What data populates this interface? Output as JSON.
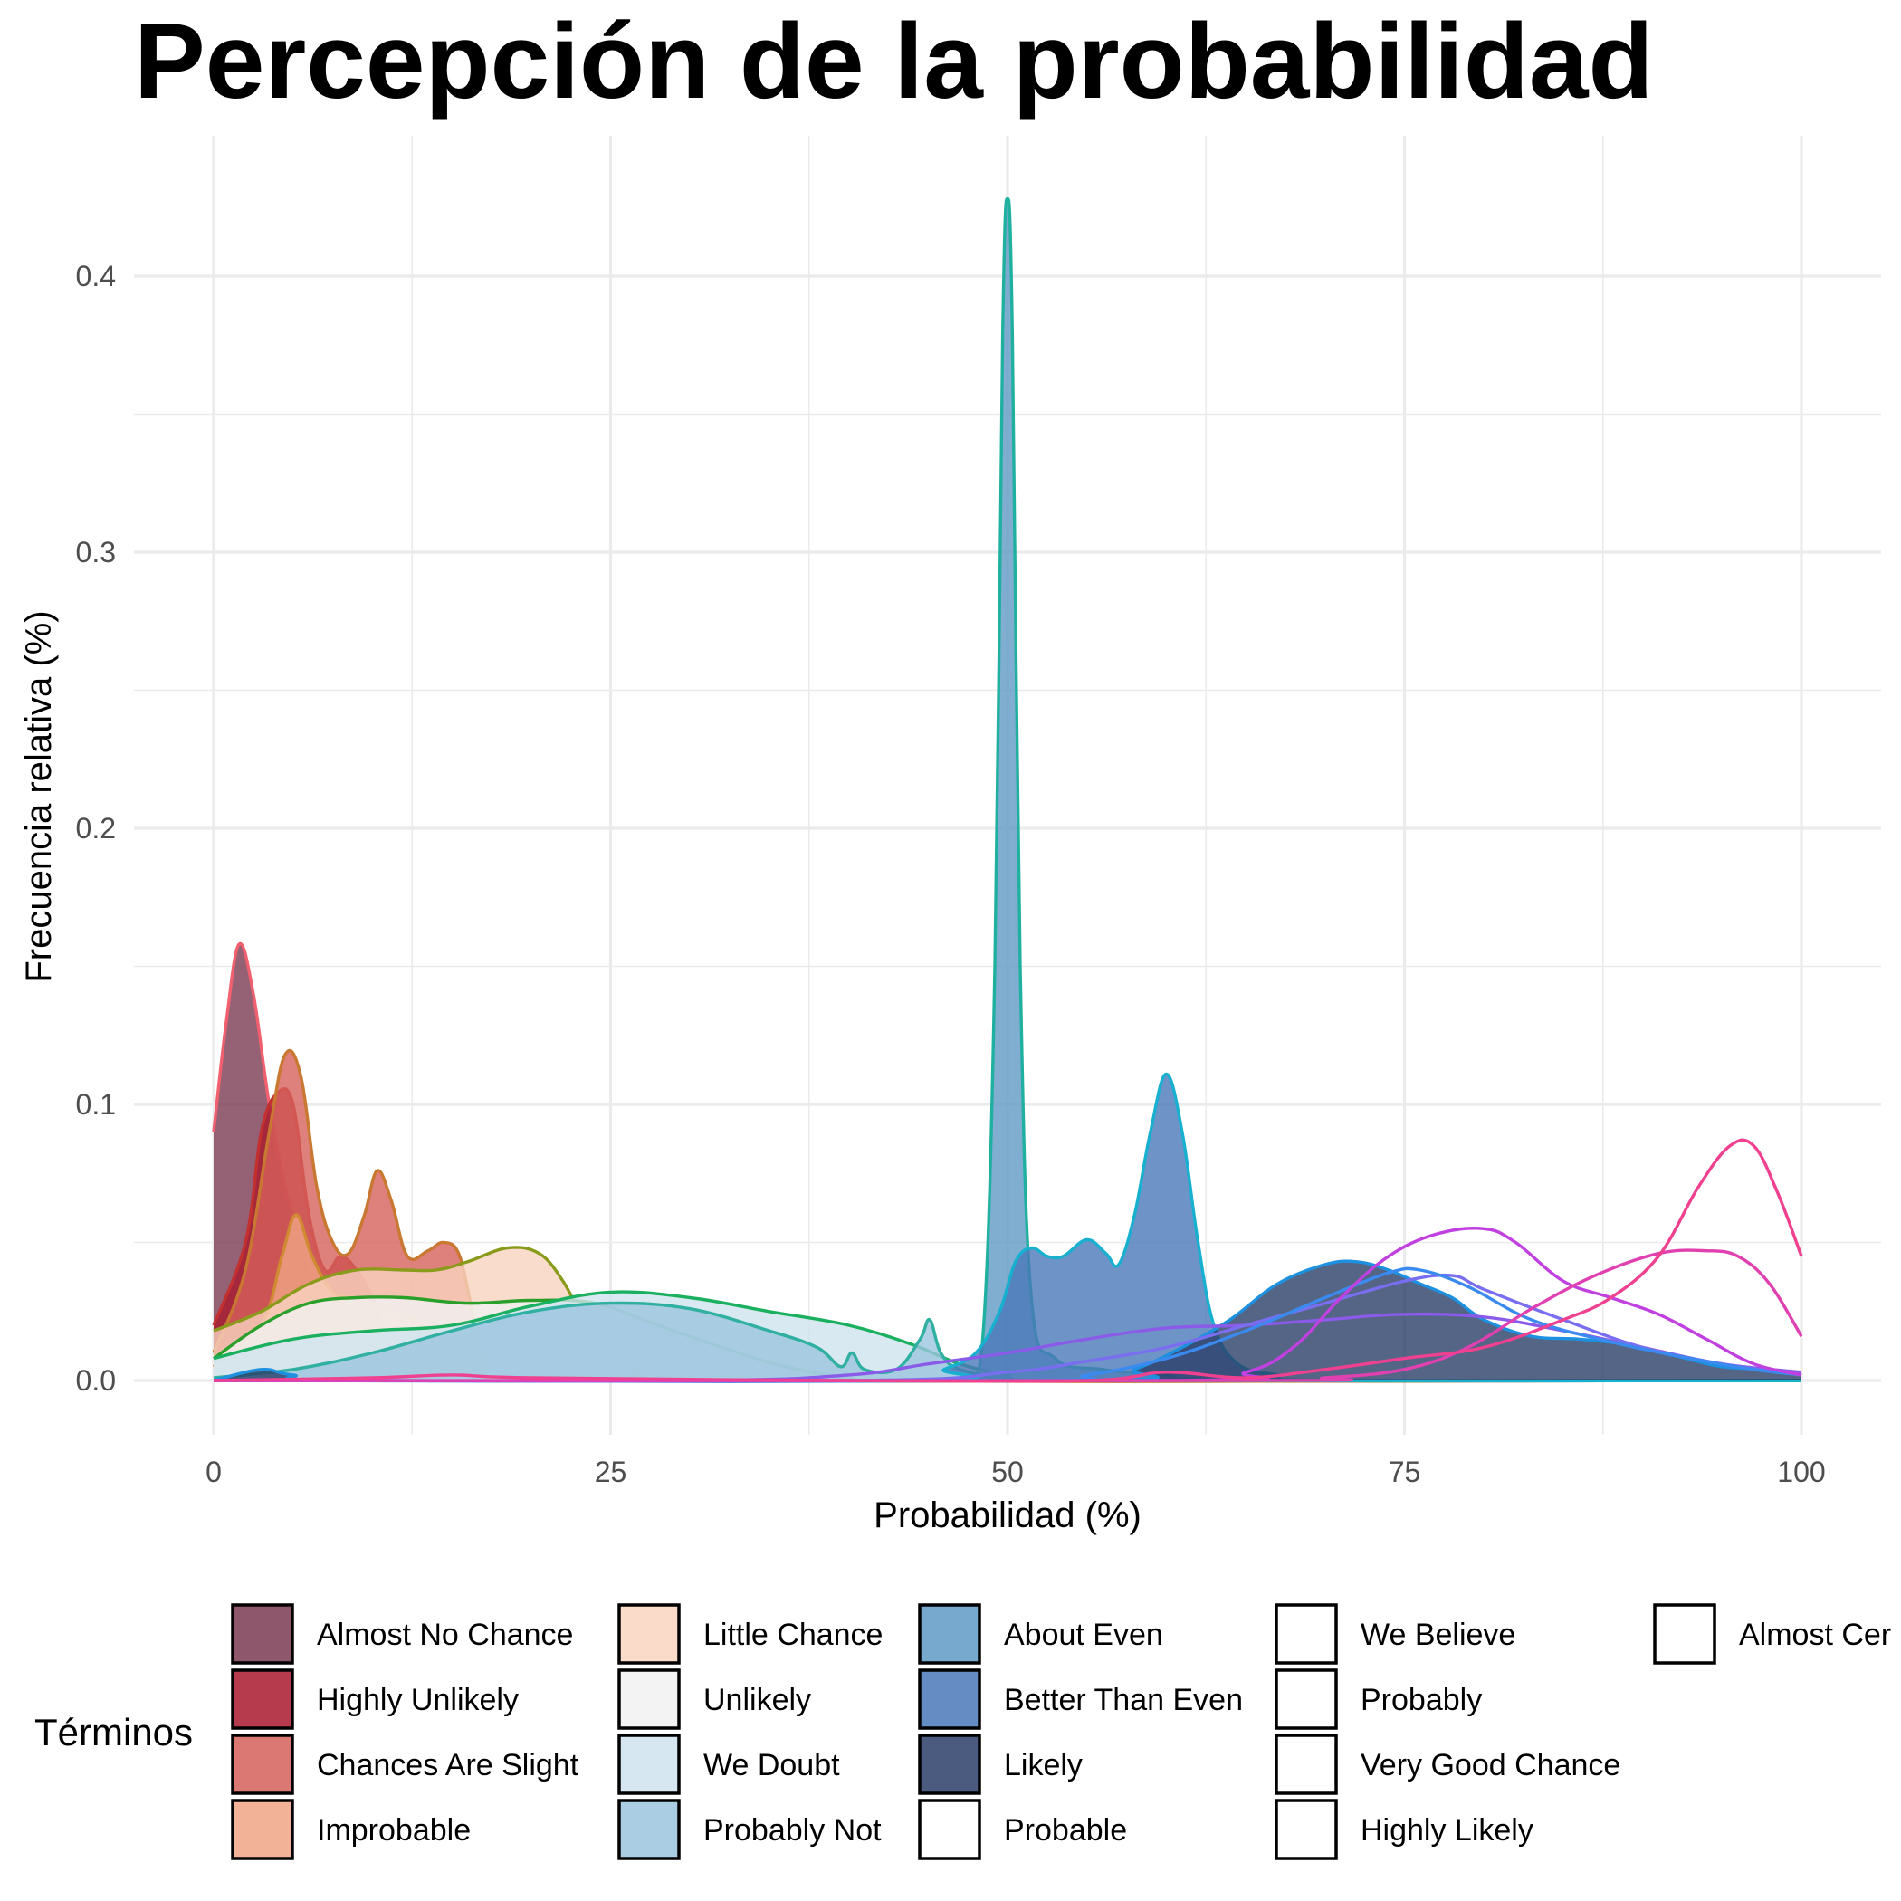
{
  "chart_data": {
    "type": "area",
    "title": "Percepción de la probabilidad",
    "xlabel": "Probabilidad (%)",
    "ylabel": "Frecuencia relativa (%)",
    "xlim": [
      0,
      100
    ],
    "ylim": [
      0,
      0.43
    ],
    "x_ticks": [
      "0",
      "25",
      "50",
      "75",
      "100"
    ],
    "y_ticks": [
      "0.0",
      "0.1",
      "0.2",
      "0.3",
      "0.4"
    ],
    "grid": true,
    "legend_position": "bottom",
    "legend_title": "Términos",
    "series": [
      {
        "name": "Almost No Chance",
        "fill": "#7a3a52",
        "stroke": "#f0606e",
        "filled": true,
        "points": [
          [
            0,
            0.09
          ],
          [
            0.8,
            0.13
          ],
          [
            1.6,
            0.158
          ],
          [
            2.5,
            0.14
          ],
          [
            3.5,
            0.1
          ],
          [
            4.5,
            0.07
          ],
          [
            5.5,
            0.05
          ],
          [
            6.5,
            0.03
          ],
          [
            7.5,
            0.015
          ],
          [
            9,
            0.004
          ],
          [
            12,
            0
          ],
          [
            100,
            0
          ]
        ]
      },
      {
        "name": "Highly Unlikely",
        "fill": "#a8192e",
        "stroke": "#c33030",
        "filled": true,
        "points": [
          [
            0,
            0.02
          ],
          [
            2,
            0.05
          ],
          [
            3,
            0.09
          ],
          [
            4,
            0.104
          ],
          [
            5,
            0.1
          ],
          [
            6,
            0.06
          ],
          [
            7,
            0.04
          ],
          [
            8,
            0.045
          ],
          [
            9,
            0.04
          ],
          [
            10,
            0.03
          ],
          [
            11,
            0.015
          ],
          [
            12,
            0.005
          ],
          [
            14,
            0
          ],
          [
            100,
            0
          ]
        ]
      },
      {
        "name": "Chances Are Slight",
        "fill": "#d6605a",
        "stroke": "#c87830",
        "filled": true,
        "points": [
          [
            0,
            0.01
          ],
          [
            2,
            0.04
          ],
          [
            3.5,
            0.09
          ],
          [
            4.5,
            0.118
          ],
          [
            5.5,
            0.11
          ],
          [
            6.5,
            0.07
          ],
          [
            7.5,
            0.05
          ],
          [
            8.5,
            0.046
          ],
          [
            9.5,
            0.06
          ],
          [
            10.3,
            0.076
          ],
          [
            11.2,
            0.065
          ],
          [
            12.2,
            0.045
          ],
          [
            13.5,
            0.047
          ],
          [
            14.5,
            0.05
          ],
          [
            15.5,
            0.045
          ],
          [
            16.5,
            0.02
          ],
          [
            17.5,
            0.005
          ],
          [
            19,
            0
          ],
          [
            100,
            0
          ]
        ]
      },
      {
        "name": "Improbable",
        "fill": "#f0a586",
        "stroke": "#d08a30",
        "filled": true,
        "points": [
          [
            0,
            0.005
          ],
          [
            3,
            0.02
          ],
          [
            4.3,
            0.045
          ],
          [
            5.2,
            0.06
          ],
          [
            6.2,
            0.045
          ],
          [
            7.5,
            0.032
          ],
          [
            9,
            0.03
          ],
          [
            11,
            0.026
          ],
          [
            13,
            0.02
          ],
          [
            15,
            0.008
          ],
          [
            17,
            0.002
          ],
          [
            20,
            0
          ],
          [
            100,
            0
          ]
        ]
      },
      {
        "name": "Little Chance",
        "fill": "#f9d3c0",
        "stroke": "#8a9a1a",
        "filled": true,
        "points": [
          [
            0,
            0.018
          ],
          [
            3,
            0.025
          ],
          [
            6,
            0.035
          ],
          [
            9,
            0.04
          ],
          [
            12,
            0.04
          ],
          [
            14,
            0.04
          ],
          [
            16,
            0.043
          ],
          [
            18.5,
            0.048
          ],
          [
            20.5,
            0.046
          ],
          [
            22,
            0.036
          ],
          [
            23.5,
            0.02
          ],
          [
            25,
            0.008
          ],
          [
            27,
            0.002
          ],
          [
            30,
            0
          ],
          [
            100,
            0
          ]
        ]
      },
      {
        "name": "Unlikely",
        "fill": "#f1f1f1",
        "stroke": "#2aa02a",
        "filled": true,
        "points": [
          [
            0,
            0.008
          ],
          [
            3,
            0.02
          ],
          [
            6,
            0.028
          ],
          [
            9,
            0.03
          ],
          [
            12,
            0.03
          ],
          [
            16,
            0.028
          ],
          [
            20,
            0.029
          ],
          [
            24,
            0.028
          ],
          [
            28,
            0.02
          ],
          [
            32,
            0.012
          ],
          [
            36,
            0.005
          ],
          [
            40,
            0.001
          ],
          [
            44,
            0
          ],
          [
            100,
            0
          ]
        ]
      },
      {
        "name": "We Doubt",
        "fill": "#cfe3ee",
        "stroke": "#1ab060",
        "filled": true,
        "points": [
          [
            0,
            0.008
          ],
          [
            5,
            0.015
          ],
          [
            10,
            0.018
          ],
          [
            15,
            0.02
          ],
          [
            20,
            0.027
          ],
          [
            25,
            0.032
          ],
          [
            30,
            0.03
          ],
          [
            35,
            0.025
          ],
          [
            40,
            0.02
          ],
          [
            44,
            0.013
          ],
          [
            47,
            0.006
          ],
          [
            50,
            0.002
          ],
          [
            53,
            0
          ],
          [
            100,
            0
          ]
        ]
      },
      {
        "name": "Probably Not",
        "fill": "#9bc4de",
        "stroke": "#30b0a0",
        "filled": true,
        "points": [
          [
            0,
            0.001
          ],
          [
            5,
            0.004
          ],
          [
            10,
            0.01
          ],
          [
            15,
            0.018
          ],
          [
            20,
            0.025
          ],
          [
            25,
            0.028
          ],
          [
            30,
            0.026
          ],
          [
            35,
            0.018
          ],
          [
            38,
            0.012
          ],
          [
            39.5,
            0.005
          ],
          [
            40.2,
            0.01
          ],
          [
            41,
            0.004
          ],
          [
            43,
            0.004
          ],
          [
            44.5,
            0.015
          ],
          [
            45.1,
            0.022
          ],
          [
            45.8,
            0.01
          ],
          [
            47,
            0.004
          ],
          [
            50,
            0.001
          ],
          [
            55,
            0
          ],
          [
            100,
            0
          ]
        ]
      },
      {
        "name": "About Even",
        "fill": "#5f9ac6",
        "stroke": "#20b0a0",
        "filled": true,
        "points": [
          [
            0,
            0
          ],
          [
            46,
            0
          ],
          [
            47.5,
            0.002
          ],
          [
            48.5,
            0.02
          ],
          [
            49.2,
            0.15
          ],
          [
            49.7,
            0.38
          ],
          [
            50,
            0.428
          ],
          [
            50.3,
            0.38
          ],
          [
            50.8,
            0.15
          ],
          [
            51.5,
            0.03
          ],
          [
            53,
            0.008
          ],
          [
            56,
            0.004
          ],
          [
            60,
            0.002
          ],
          [
            65,
            0
          ],
          [
            100,
            0
          ]
        ]
      },
      {
        "name": "Better Than Even",
        "fill": "#4a78b8",
        "stroke": "#18b0d0",
        "filled": true,
        "points": [
          [
            0,
            0
          ],
          [
            44,
            0
          ],
          [
            46,
            0.004
          ],
          [
            48,
            0.01
          ],
          [
            49.5,
            0.025
          ],
          [
            50.5,
            0.043
          ],
          [
            51.5,
            0.048
          ],
          [
            52.5,
            0.045
          ],
          [
            53.5,
            0.045
          ],
          [
            55,
            0.051
          ],
          [
            56.2,
            0.046
          ],
          [
            57,
            0.042
          ],
          [
            58,
            0.06
          ],
          [
            59,
            0.09
          ],
          [
            60,
            0.111
          ],
          [
            61,
            0.09
          ],
          [
            62,
            0.05
          ],
          [
            63,
            0.02
          ],
          [
            64.5,
            0.006
          ],
          [
            67,
            0.002
          ],
          [
            70,
            0
          ],
          [
            100,
            0
          ]
        ]
      },
      {
        "name": "Likely",
        "fill": "#2a3e68",
        "stroke": "#1e90e0",
        "filled": true,
        "points": [
          [
            0,
            0
          ],
          [
            3,
            0.004
          ],
          [
            5,
            0.002
          ],
          [
            10,
            0
          ],
          [
            55,
            0
          ],
          [
            58,
            0.004
          ],
          [
            61,
            0.012
          ],
          [
            64,
            0.022
          ],
          [
            67,
            0.035
          ],
          [
            70,
            0.042
          ],
          [
            72,
            0.043
          ],
          [
            74,
            0.04
          ],
          [
            76,
            0.035
          ],
          [
            78,
            0.03
          ],
          [
            80,
            0.022
          ],
          [
            83,
            0.016
          ],
          [
            86,
            0.015
          ],
          [
            89,
            0.013
          ],
          [
            92,
            0.009
          ],
          [
            95,
            0.005
          ],
          [
            98,
            0.004
          ],
          [
            100,
            0.002
          ]
        ]
      },
      {
        "name": "Probable",
        "fill": "#ffffff",
        "stroke": "#8a5ae8",
        "filled": false,
        "points": [
          [
            0,
            0
          ],
          [
            30,
            0
          ],
          [
            40,
            0.002
          ],
          [
            45,
            0.006
          ],
          [
            50,
            0.01
          ],
          [
            55,
            0.015
          ],
          [
            60,
            0.019
          ],
          [
            65,
            0.02
          ],
          [
            70,
            0.022
          ],
          [
            75,
            0.024
          ],
          [
            80,
            0.023
          ],
          [
            85,
            0.018
          ],
          [
            90,
            0.012
          ],
          [
            95,
            0.006
          ],
          [
            100,
            0.003
          ]
        ]
      },
      {
        "name": "We Believe",
        "fill": "#ffffff",
        "stroke": "#7a6ef0",
        "filled": false,
        "points": [
          [
            0,
            0
          ],
          [
            40,
            0
          ],
          [
            50,
            0.003
          ],
          [
            55,
            0.007
          ],
          [
            60,
            0.012
          ],
          [
            65,
            0.02
          ],
          [
            70,
            0.028
          ],
          [
            75,
            0.036
          ],
          [
            78,
            0.038
          ],
          [
            80,
            0.033
          ],
          [
            85,
            0.022
          ],
          [
            90,
            0.012
          ],
          [
            95,
            0.006
          ],
          [
            100,
            0.002
          ]
        ]
      },
      {
        "name": "Probably",
        "fill": "#ffffff",
        "stroke": "#3a8af0",
        "filled": false,
        "points": [
          [
            0,
            0
          ],
          [
            50,
            0
          ],
          [
            55,
            0.002
          ],
          [
            60,
            0.008
          ],
          [
            65,
            0.018
          ],
          [
            70,
            0.03
          ],
          [
            74,
            0.039
          ],
          [
            76,
            0.04
          ],
          [
            79,
            0.034
          ],
          [
            83,
            0.022
          ],
          [
            88,
            0.014
          ],
          [
            93,
            0.008
          ],
          [
            97,
            0.004
          ],
          [
            100,
            0.002
          ]
        ]
      },
      {
        "name": "Very Good Chance",
        "fill": "#ffffff",
        "stroke": "#c040e0",
        "filled": false,
        "points": [
          [
            0,
            0
          ],
          [
            60,
            0
          ],
          [
            65,
            0.003
          ],
          [
            68,
            0.012
          ],
          [
            71,
            0.03
          ],
          [
            74,
            0.045
          ],
          [
            77,
            0.053
          ],
          [
            80,
            0.055
          ],
          [
            82,
            0.05
          ],
          [
            85,
            0.036
          ],
          [
            88,
            0.03
          ],
          [
            91,
            0.024
          ],
          [
            94,
            0.015
          ],
          [
            97,
            0.006
          ],
          [
            100,
            0.002
          ]
        ]
      },
      {
        "name": "Highly Likely",
        "fill": "#ffffff",
        "stroke": "#e040b0",
        "filled": false,
        "points": [
          [
            0,
            0
          ],
          [
            65,
            0
          ],
          [
            70,
            0.001
          ],
          [
            75,
            0.004
          ],
          [
            79,
            0.012
          ],
          [
            83,
            0.026
          ],
          [
            87,
            0.038
          ],
          [
            91,
            0.046
          ],
          [
            94,
            0.047
          ],
          [
            96,
            0.045
          ],
          [
            98,
            0.035
          ],
          [
            100,
            0.016
          ]
        ]
      },
      {
        "name": "Almost Certainly",
        "fill": "#ffffff",
        "stroke": "#f04090",
        "filled": false,
        "points": [
          [
            0,
            0
          ],
          [
            10,
            0.001
          ],
          [
            15,
            0.002
          ],
          [
            20,
            0.001
          ],
          [
            40,
            0
          ],
          [
            55,
            0
          ],
          [
            60,
            0.003
          ],
          [
            65,
            0.001
          ],
          [
            70,
            0.004
          ],
          [
            75,
            0.008
          ],
          [
            80,
            0.012
          ],
          [
            85,
            0.022
          ],
          [
            88,
            0.03
          ],
          [
            91,
            0.045
          ],
          [
            93.5,
            0.07
          ],
          [
            95.5,
            0.085
          ],
          [
            97,
            0.085
          ],
          [
            98.5,
            0.068
          ],
          [
            100,
            0.045
          ]
        ]
      }
    ],
    "legend_entries": [
      "Almost No Chance",
      "Highly Unlikely",
      "Chances Are Slight",
      "Improbable",
      "Little Chance",
      "Unlikely",
      "We Doubt",
      "Probably Not",
      "About Even",
      "Better Than Even",
      "Likely",
      "Probable",
      "We Believe",
      "Probably",
      "Very Good Chance",
      "Highly Likely",
      "Almost Cer"
    ]
  }
}
